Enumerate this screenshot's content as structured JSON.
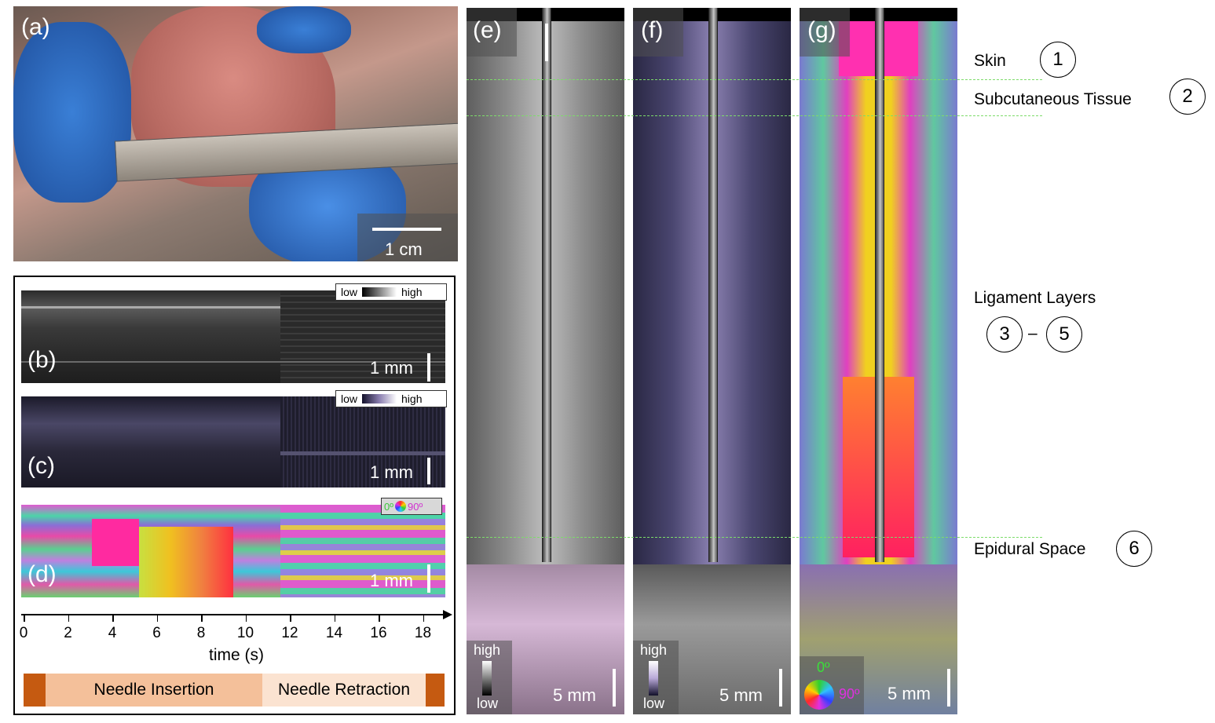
{
  "panels": {
    "a": {
      "label": "(a)",
      "scale": "1 cm"
    },
    "b": {
      "label": "(b)",
      "scale": "1 mm",
      "legend_low": "low",
      "legend_high": "high"
    },
    "c": {
      "label": "(c)",
      "scale": "1 mm",
      "legend_low": "low",
      "legend_high": "high"
    },
    "d": {
      "label": "(d)",
      "scale": "1 mm",
      "legend_left": "0º",
      "legend_right": "90º"
    },
    "e": {
      "label": "(e)",
      "scale": "5 mm",
      "legend_high": "high",
      "legend_low": "low"
    },
    "f": {
      "label": "(f)",
      "scale": "5 mm",
      "legend_high": "high",
      "legend_low": "low"
    },
    "g": {
      "label": "(g)",
      "scale": "5 mm",
      "legend_top": "0º",
      "legend_right": "90º"
    }
  },
  "time_axis": {
    "ticks": [
      "0",
      "2",
      "4",
      "6",
      "8",
      "10",
      "12",
      "14",
      "16",
      "18"
    ],
    "label": "time (s)"
  },
  "phases": {
    "insertion": "Needle Insertion",
    "retraction": "Needle Retraction"
  },
  "annotations": {
    "skin": {
      "text": "Skin",
      "num": "1"
    },
    "subcutaneous": {
      "text": "Subcutaneous Tissue",
      "num": "2"
    },
    "ligament": {
      "text": "Ligament Layers",
      "num_start": "3",
      "dash": "–",
      "num_end": "5"
    },
    "epidural": {
      "text": "Epidural Space",
      "num": "6"
    }
  },
  "colors": {
    "phase_dark": "#c55a11",
    "phase_insertion": "#f4c09a",
    "phase_retraction": "#fbe3d1",
    "guide_line": "#7ddc6a"
  }
}
